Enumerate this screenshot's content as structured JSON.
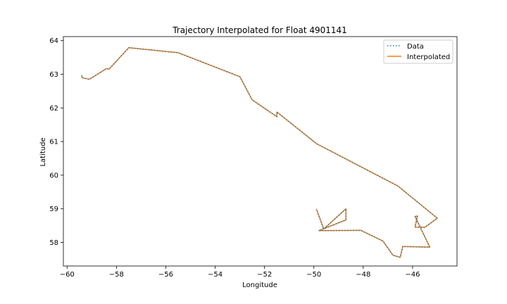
{
  "chart_data": {
    "type": "line",
    "title": "Trajectory Interpolated for Float 4901141",
    "xlabel": "Longitude",
    "ylabel": "Latitude",
    "xlim": [
      -60.15,
      -44.2
    ],
    "ylim": [
      57.3,
      64.12
    ],
    "xticks": [
      -60,
      -58,
      -56,
      -54,
      -52,
      -50,
      -48,
      -46
    ],
    "yticks": [
      58,
      59,
      60,
      61,
      62,
      63,
      64
    ],
    "grid": false,
    "legend": "top-right",
    "series": [
      {
        "name": "Data",
        "color": "#1f77b4",
        "style": "dotted",
        "x": [
          -59.4,
          -59.4,
          -59.1,
          -58.4,
          -58.3,
          -57.5,
          -55.5,
          -53.0,
          -52.5,
          -51.5,
          -51.5,
          -49.9,
          -46.6,
          -45.0,
          -45.5,
          -45.9,
          -45.8,
          -45.9,
          -45.3,
          -46.4,
          -46.5,
          -46.8,
          -47.2,
          -48.1,
          -49.8,
          -48.7,
          -48.7,
          -49.6,
          -49.9
        ],
        "y": [
          62.97,
          62.9,
          62.85,
          63.17,
          63.15,
          63.79,
          63.64,
          62.93,
          62.24,
          61.74,
          61.88,
          60.94,
          59.68,
          58.72,
          58.45,
          58.46,
          58.79,
          58.77,
          57.86,
          57.88,
          57.56,
          57.62,
          58.04,
          58.36,
          58.35,
          58.67,
          59.0,
          58.4,
          59.0
        ]
      },
      {
        "name": "Interpolated",
        "color": "#ff7f0e",
        "style": "solid",
        "x": [
          -59.4,
          -59.4,
          -59.1,
          -58.4,
          -58.3,
          -57.5,
          -55.5,
          -53.0,
          -52.5,
          -51.5,
          -51.5,
          -49.9,
          -46.6,
          -45.0,
          -45.5,
          -45.9,
          -45.8,
          -45.9,
          -45.3,
          -46.4,
          -46.5,
          -46.8,
          -47.2,
          -48.1,
          -49.8,
          -48.7,
          -48.7,
          -49.6,
          -49.9
        ],
        "y": [
          62.97,
          62.9,
          62.85,
          63.17,
          63.15,
          63.79,
          63.64,
          62.93,
          62.24,
          61.74,
          61.88,
          60.94,
          59.68,
          58.72,
          58.45,
          58.46,
          58.79,
          58.77,
          57.86,
          57.88,
          57.56,
          57.62,
          58.04,
          58.36,
          58.35,
          58.67,
          59.0,
          58.4,
          59.0
        ]
      }
    ]
  }
}
